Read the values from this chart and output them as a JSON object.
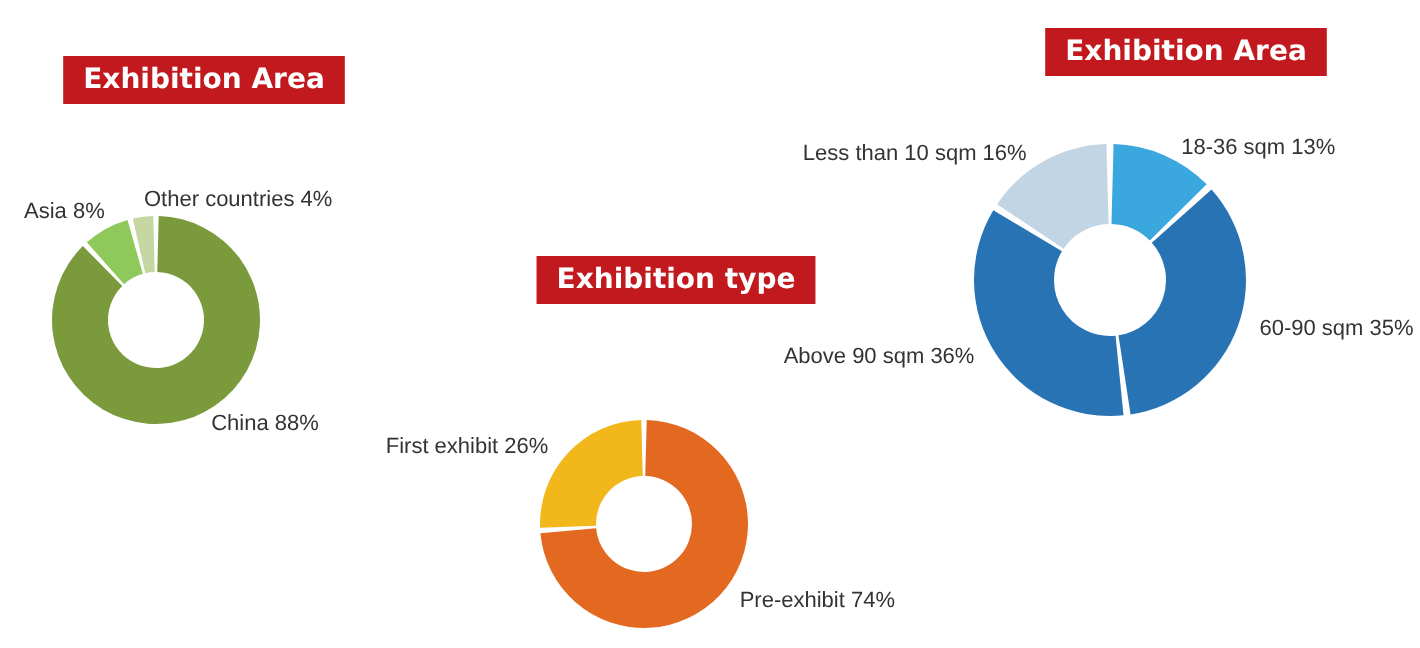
{
  "chart_data": [
    {
      "type": "donut",
      "title": "Exhibition Area",
      "categories": [
        "China",
        "Asia",
        "Other countries"
      ],
      "values": [
        88,
        8,
        4
      ],
      "colors": [
        "#7a9a3b",
        "#8fc95c",
        "#c6d7a3"
      ],
      "value_labels": [
        "88%",
        "8%",
        "4%"
      ]
    },
    {
      "type": "donut",
      "title": "Exhibition type",
      "categories": [
        "Pre-exhibit",
        "First exhibit"
      ],
      "values": [
        74,
        26
      ],
      "colors": [
        "#e2691f",
        "#f2b71a"
      ],
      "value_labels": [
        "74%",
        "26%"
      ]
    },
    {
      "type": "donut",
      "title": "Exhibition Area",
      "categories": [
        "18-36 sqm",
        "60-90 sqm",
        "Above 90 sqm",
        "Less than 10 sqm"
      ],
      "values": [
        13,
        35,
        36,
        16
      ],
      "colors": [
        "#3aa7df",
        "#2873b4",
        "#2873b4",
        "#c2d5e5"
      ],
      "value_labels": [
        "13%",
        "35%",
        "36%",
        "16%"
      ]
    }
  ]
}
